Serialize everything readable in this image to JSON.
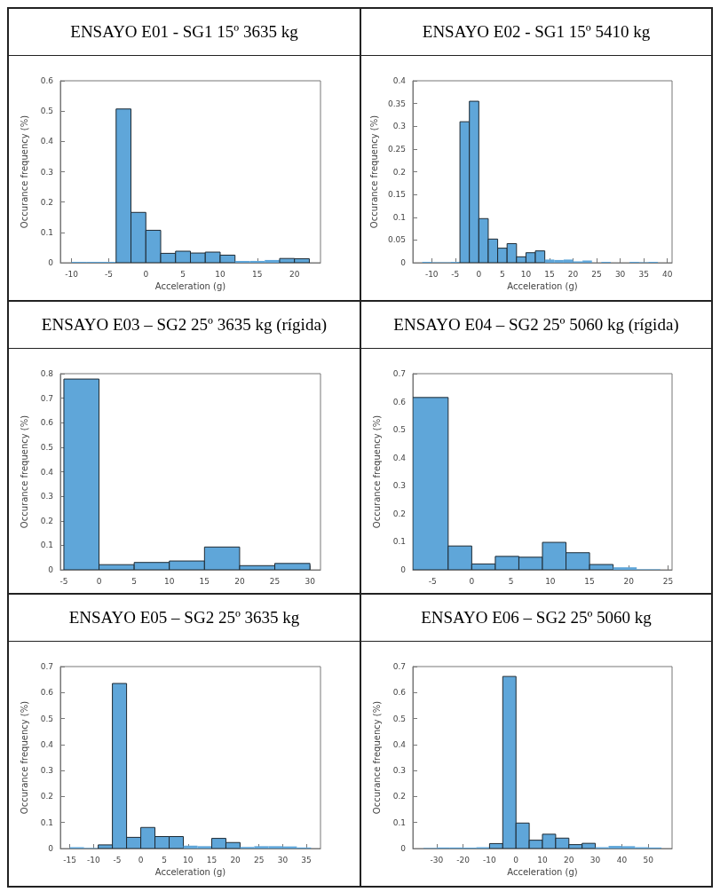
{
  "chart_data": [
    {
      "type": "histogram",
      "title": "ENSAYO E01 - SG1 15º 3635 kg",
      "xlabel": "Acceleration (g)",
      "ylabel": "Occurance frequency (%)",
      "color": "#5fa6d9",
      "bins": [
        -10,
        -8,
        -6,
        -4,
        -2,
        0,
        2,
        4,
        6,
        8,
        10,
        12,
        14,
        16,
        18,
        20,
        22
      ],
      "values": [
        0.003,
        0.003,
        0.003,
        0.507,
        0.166,
        0.107,
        0.031,
        0.038,
        0.032,
        0.035,
        0.025,
        0.006,
        0.006,
        0.009,
        0.014,
        0.013
      ],
      "xlim": [
        -11.5,
        23.5
      ],
      "xticks": [
        -10,
        -5,
        0,
        5,
        10,
        15,
        20
      ],
      "ylim": [
        0,
        0.6
      ],
      "yticks": [
        0,
        0.1,
        0.2,
        0.3,
        0.4,
        0.5,
        0.6
      ]
    },
    {
      "type": "histogram",
      "title": "ENSAYO E02 - SG1 15º 5410 kg",
      "xlabel": "Acceleration (g)",
      "ylabel": "Occurance frequency (%)",
      "color": "#5fa6d9",
      "bins": [
        -12,
        -10,
        -8,
        -6,
        -4,
        -2,
        0,
        2,
        4,
        6,
        8,
        10,
        12,
        14,
        16,
        18,
        20,
        22,
        24,
        26,
        28,
        30,
        32,
        34,
        36,
        38
      ],
      "values": [
        0.002,
        0.001,
        0.001,
        0.002,
        0.31,
        0.355,
        0.097,
        0.052,
        0.032,
        0.042,
        0.013,
        0.022,
        0.026,
        0.007,
        0.006,
        0.007,
        0.003,
        0.005,
        0,
        0.002,
        0,
        0,
        0.002,
        0.001,
        0.002
      ],
      "xlim": [
        -14,
        41
      ],
      "xticks": [
        -10,
        -5,
        0,
        5,
        10,
        15,
        20,
        25,
        30,
        35,
        40
      ],
      "ylim": [
        0,
        0.4
      ],
      "yticks": [
        0,
        0.05,
        0.1,
        0.15,
        0.2,
        0.25,
        0.3,
        0.35,
        0.4
      ]
    },
    {
      "type": "histogram",
      "title": "ENSAYO E03 – SG2 25º 3635 kg (rígida)",
      "ylabel": "Occurance frequency (%)",
      "color": "#5fa6d9",
      "bins": [
        -5,
        0,
        5,
        10,
        15,
        20,
        25,
        30
      ],
      "values": [
        0.778,
        0.021,
        0.03,
        0.036,
        0.093,
        0.017,
        0.026
      ],
      "xlim": [
        -5.5,
        31.5
      ],
      "xticks": [
        -5,
        0,
        5,
        10,
        15,
        20,
        25,
        30
      ],
      "ylim": [
        0,
        0.8
      ],
      "yticks": [
        0,
        0.1,
        0.2,
        0.3,
        0.4,
        0.5,
        0.6,
        0.7,
        0.8
      ]
    },
    {
      "type": "histogram",
      "title": "ENSAYO E04 – SG2 25º 5060 kg (rígida)",
      "ylabel": "Occurance frequency (%)",
      "color": "#5fa6d9",
      "bins": [
        -7.5,
        -3,
        0,
        3,
        6,
        9,
        12,
        15,
        18,
        21,
        24
      ],
      "values": [
        0.615,
        0.085,
        0.021,
        0.048,
        0.045,
        0.098,
        0.061,
        0.019,
        0.009,
        0.002
      ],
      "xlim": [
        -7.5,
        25.5
      ],
      "xticks": [
        -5,
        0,
        5,
        10,
        15,
        20,
        25
      ],
      "ylim": [
        0,
        0.7
      ],
      "yticks": [
        0,
        0.1,
        0.2,
        0.3,
        0.4,
        0.5,
        0.6,
        0.7
      ]
    },
    {
      "type": "histogram",
      "title": "ENSAYO E05 – SG2 25º 3635 kg",
      "xlabel": "Acceleration (g)",
      "ylabel": "Occurance frequency (%)",
      "color": "#5fa6d9",
      "bins": [
        -15,
        -12,
        -9,
        -6,
        -3,
        0,
        3,
        6,
        9,
        12,
        15,
        18,
        21,
        24,
        27,
        30,
        33,
        36
      ],
      "values": [
        0.005,
        0.002,
        0.014,
        0.635,
        0.043,
        0.081,
        0.046,
        0.046,
        0.011,
        0.009,
        0.039,
        0.023,
        0.006,
        0.009,
        0.009,
        0.008,
        0.004
      ],
      "xlim": [
        -17,
        38
      ],
      "xticks": [
        -15,
        -10,
        -5,
        0,
        5,
        10,
        15,
        20,
        25,
        30,
        35
      ],
      "ylim": [
        0,
        0.7
      ],
      "yticks": [
        0,
        0.1,
        0.2,
        0.3,
        0.4,
        0.5,
        0.6,
        0.7
      ]
    },
    {
      "type": "histogram",
      "title": "ENSAYO E06 – SG2 25º 5060 kg",
      "xlabel": "Acceleration (g)",
      "ylabel": "Occurance frequency (%)",
      "color": "#5fa6d9",
      "bins": [
        -35,
        -30,
        -25,
        -20,
        -15,
        -10,
        -5,
        0,
        5,
        10,
        15,
        20,
        25,
        30,
        35,
        40,
        45,
        50,
        55
      ],
      "values": [
        0.002,
        0.004,
        0.004,
        0.003,
        0.005,
        0.019,
        0.662,
        0.098,
        0.032,
        0.055,
        0.04,
        0.015,
        0.02,
        0.005,
        0.01,
        0.009,
        0.005,
        0.004
      ],
      "xlim": [
        -39,
        59
      ],
      "xticks": [
        -30,
        -20,
        -10,
        0,
        10,
        20,
        30,
        40,
        50
      ],
      "ylim": [
        0,
        0.7
      ],
      "yticks": [
        0,
        0.1,
        0.2,
        0.3,
        0.4,
        0.5,
        0.6,
        0.7
      ]
    }
  ]
}
